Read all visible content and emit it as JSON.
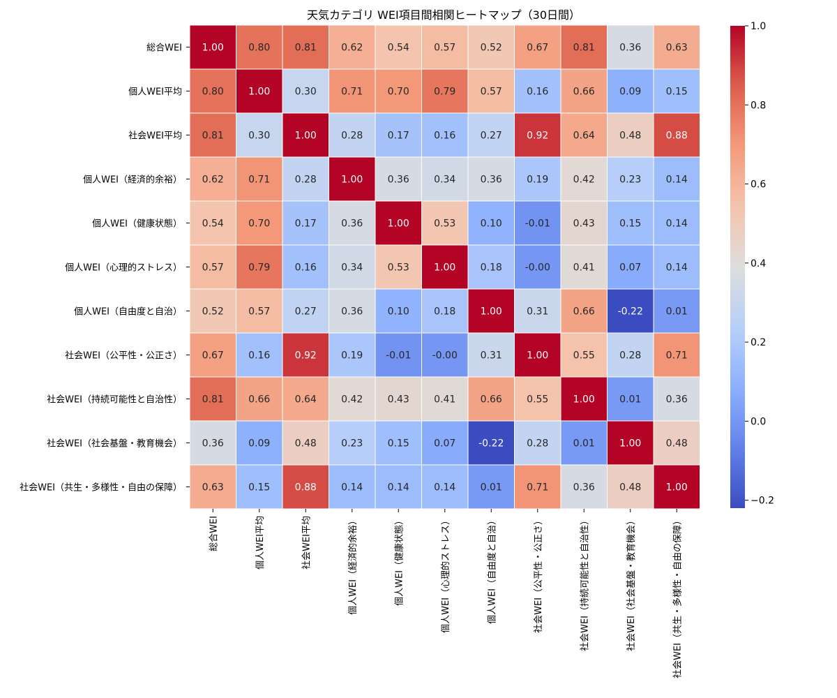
{
  "chart_data": {
    "type": "heatmap",
    "title": "天気カテゴリ WEI項目間相関ヒートマップ（30日間）",
    "xlabel": "",
    "ylabel": "",
    "labels": [
      "総合WEI",
      "個人WEI平均",
      "社会WEI平均",
      "個人WEI（経済的余裕）",
      "個人WEI（健康状態）",
      "個人WEI（心理的ストレス）",
      "個人WEI（自由度と自治）",
      "社会WEI（公平性・公正さ）",
      "社会WEI（持続可能性と自治性）",
      "社会WEI（社会基盤・教育機会）",
      "社会WEI（共生・多様性・自由の保障）"
    ],
    "matrix": [
      [
        1.0,
        0.8,
        0.81,
        0.62,
        0.54,
        0.57,
        0.52,
        0.67,
        0.81,
        0.36,
        0.63
      ],
      [
        0.8,
        1.0,
        0.3,
        0.71,
        0.7,
        0.79,
        0.57,
        0.16,
        0.66,
        0.09,
        0.15
      ],
      [
        0.81,
        0.3,
        1.0,
        0.28,
        0.17,
        0.16,
        0.27,
        0.92,
        0.64,
        0.48,
        0.88
      ],
      [
        0.62,
        0.71,
        0.28,
        1.0,
        0.36,
        0.34,
        0.36,
        0.19,
        0.42,
        0.23,
        0.14
      ],
      [
        0.54,
        0.7,
        0.17,
        0.36,
        1.0,
        0.53,
        0.1,
        -0.01,
        0.43,
        0.15,
        0.14
      ],
      [
        0.57,
        0.79,
        0.16,
        0.34,
        0.53,
        1.0,
        0.18,
        -0.0,
        0.41,
        0.07,
        0.14
      ],
      [
        0.52,
        0.57,
        0.27,
        0.36,
        0.1,
        0.18,
        1.0,
        0.31,
        0.66,
        -0.22,
        0.01
      ],
      [
        0.67,
        0.16,
        0.92,
        0.19,
        -0.01,
        -0.0,
        0.31,
        1.0,
        0.55,
        0.28,
        0.71
      ],
      [
        0.81,
        0.66,
        0.64,
        0.42,
        0.43,
        0.41,
        0.66,
        0.55,
        1.0,
        0.01,
        0.36
      ],
      [
        0.36,
        0.09,
        0.48,
        0.23,
        0.15,
        0.07,
        -0.22,
        0.28,
        0.01,
        1.0,
        0.48
      ],
      [
        0.63,
        0.15,
        0.88,
        0.14,
        0.14,
        0.14,
        0.01,
        0.71,
        0.36,
        0.48,
        1.0
      ]
    ],
    "colormap": "coolwarm",
    "vmin": -0.22,
    "vmax": 1.0,
    "colorbar_ticks": [
      "1.0",
      "0.8",
      "0.6",
      "0.4",
      "0.2",
      "0.0",
      "−0.2"
    ],
    "grid": false,
    "legend": "colorbar-right",
    "cell_border_color": "#ffffff"
  }
}
